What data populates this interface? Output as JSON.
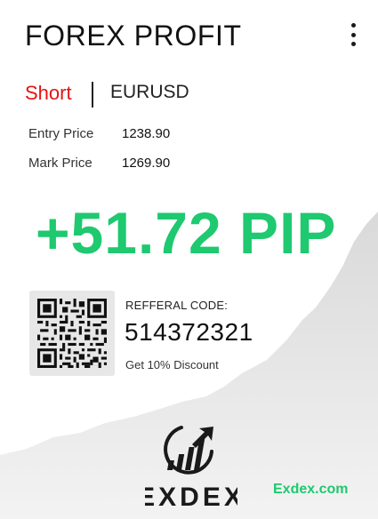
{
  "header": {
    "title": "FOREX PROFIT",
    "menu_icon": "more-vertical-icon"
  },
  "trade": {
    "side": "Short",
    "pair": "EURUSD",
    "entry_label": "Entry Price",
    "entry_value": "1238.90",
    "mark_label": "Mark Price",
    "mark_value": "1269.90",
    "profit": "+51.72 PIP"
  },
  "referral": {
    "label": "REFFERAL CODE:",
    "code": "514372321",
    "discount": "Get 10% Discount"
  },
  "brand": {
    "logo_text": "EXDEX",
    "website": "Exdex.com",
    "logo_icon": "bar-chart-arrow-icon"
  },
  "colors": {
    "profit": "#1ec96f",
    "short": "#e41313",
    "text": "#111111",
    "chart_fill": "#e2e2e2"
  }
}
